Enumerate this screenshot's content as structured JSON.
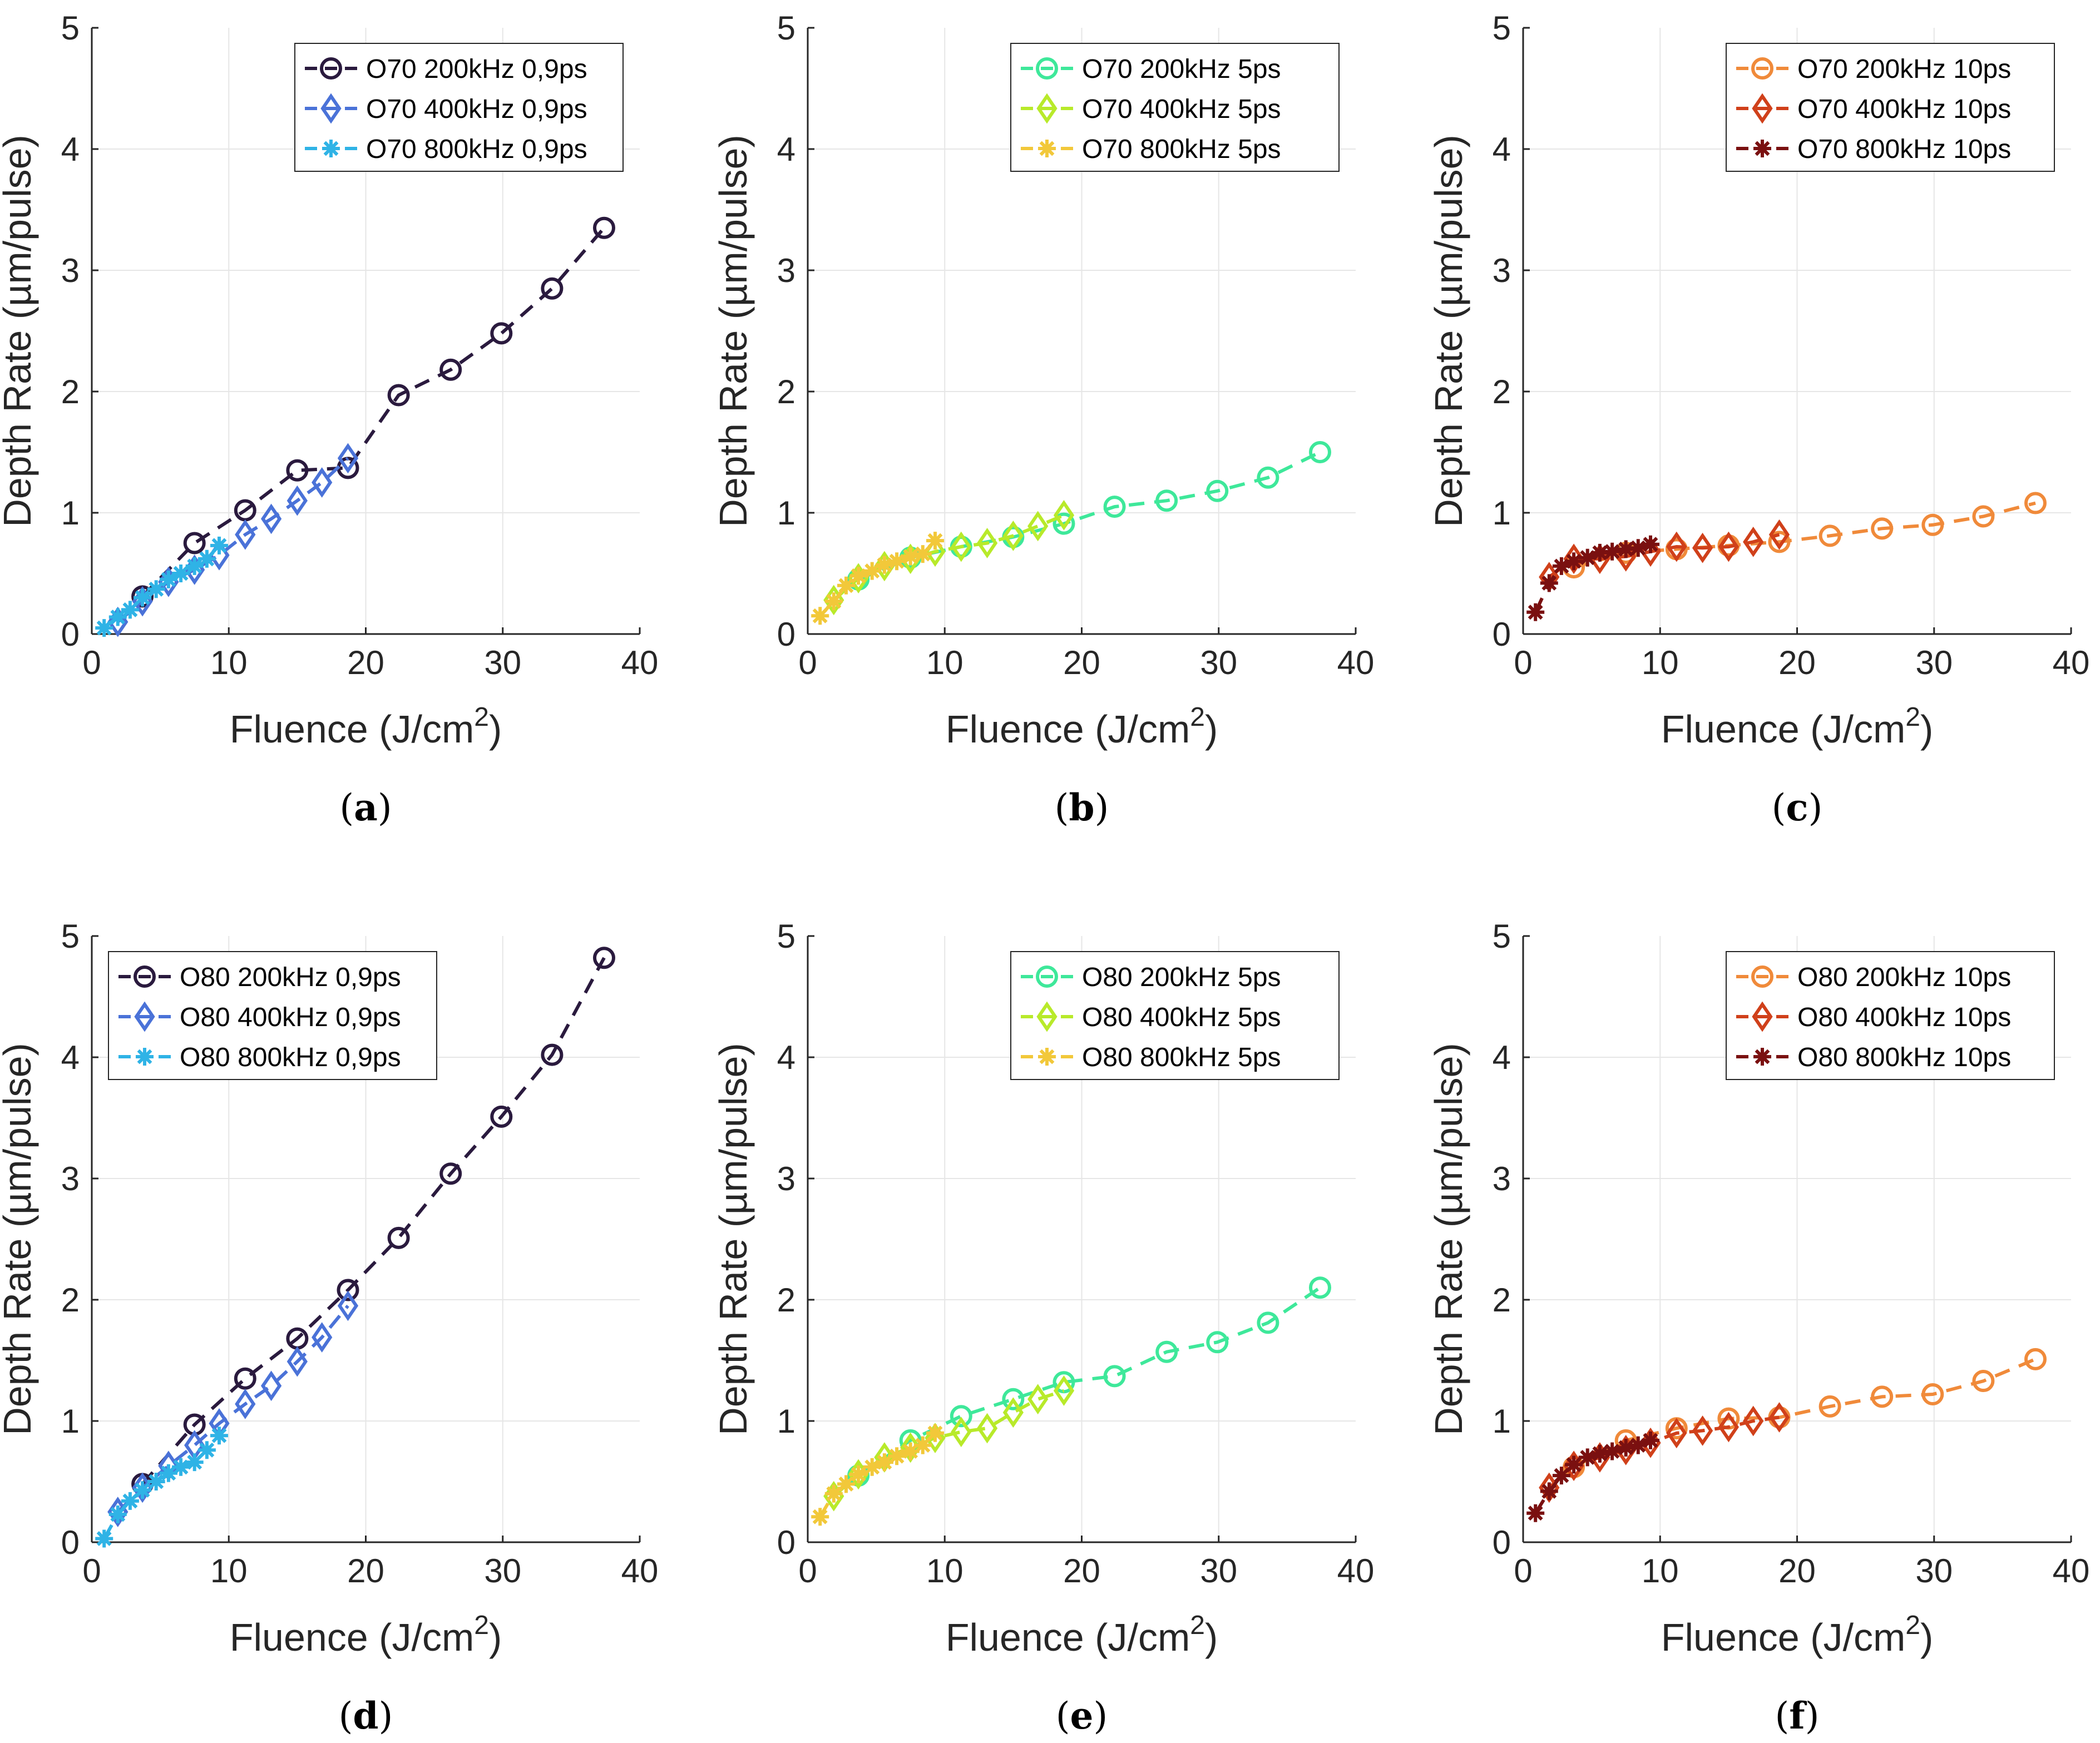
{
  "figure": {
    "panels": [
      {
        "id": "a",
        "caption": "(a)",
        "caption_letter": "a",
        "xlabel": "Fluence (J/cm",
        "xlabel_sup": "2",
        "xlabel_close": ")",
        "ylabel": "Depth Rate (µm/pulse)",
        "chart_data": {
          "type": "line",
          "xlim": [
            0,
            40
          ],
          "ylim": [
            0,
            5
          ],
          "xticks": [
            0,
            10,
            20,
            30,
            40
          ],
          "yticks": [
            0,
            1,
            2,
            3,
            4,
            5
          ],
          "grid": true,
          "legend": "top-right",
          "series": [
            {
              "name": "O70 200kHz 0,9ps",
              "color": "#2a1a3e",
              "marker": "circle",
              "x": [
                3.7,
                7.5,
                11.2,
                15.0,
                18.7,
                22.4,
                26.2,
                29.9,
                33.6,
                37.4
              ],
              "y": [
                0.31,
                0.75,
                1.02,
                1.35,
                1.37,
                1.97,
                2.18,
                2.48,
                2.85,
                3.35
              ]
            },
            {
              "name": "O70 400kHz 0,9ps",
              "color": "#4a72d8",
              "marker": "diamond",
              "x": [
                1.9,
                3.7,
                5.6,
                7.5,
                9.3,
                11.2,
                13.1,
                15.0,
                16.8,
                18.7
              ],
              "y": [
                0.1,
                0.27,
                0.43,
                0.53,
                0.65,
                0.82,
                0.95,
                1.1,
                1.25,
                1.45
              ]
            },
            {
              "name": "O70 800kHz 0,9ps",
              "color": "#2fb3e6",
              "marker": "star",
              "x": [
                0.9,
                1.9,
                2.8,
                3.7,
                4.7,
                5.6,
                6.5,
                7.5,
                8.4,
                9.3
              ],
              "y": [
                0.05,
                0.14,
                0.2,
                0.3,
                0.37,
                0.45,
                0.5,
                0.56,
                0.62,
                0.73
              ]
            }
          ]
        }
      },
      {
        "id": "b",
        "caption": "(b)",
        "caption_letter": "b",
        "xlabel": "Fluence (J/cm",
        "xlabel_sup": "2",
        "xlabel_close": ")",
        "ylabel": "Depth Rate (µm/pulse)",
        "chart_data": {
          "type": "line",
          "xlim": [
            0,
            40
          ],
          "ylim": [
            0,
            5
          ],
          "xticks": [
            0,
            10,
            20,
            30,
            40
          ],
          "yticks": [
            0,
            1,
            2,
            3,
            4,
            5
          ],
          "grid": true,
          "legend": "top-right",
          "series": [
            {
              "name": "O70 200kHz 5ps",
              "color": "#3ee89a",
              "marker": "circle",
              "x": [
                3.7,
                7.5,
                11.2,
                15.0,
                18.7,
                22.4,
                26.2,
                29.9,
                33.6,
                37.4
              ],
              "y": [
                0.45,
                0.63,
                0.72,
                0.8,
                0.91,
                1.05,
                1.1,
                1.18,
                1.29,
                1.5
              ]
            },
            {
              "name": "O70 400kHz 5ps",
              "color": "#b8ea2a",
              "marker": "diamond",
              "x": [
                1.9,
                3.7,
                5.6,
                7.5,
                9.3,
                11.2,
                13.1,
                15.0,
                16.8,
                18.7
              ],
              "y": [
                0.28,
                0.46,
                0.56,
                0.62,
                0.68,
                0.72,
                0.75,
                0.81,
                0.89,
                0.98
              ]
            },
            {
              "name": "O70 800kHz 5ps",
              "color": "#f2c83a",
              "marker": "star",
              "x": [
                0.9,
                1.9,
                2.8,
                3.7,
                4.7,
                5.6,
                6.5,
                7.5,
                8.4,
                9.3
              ],
              "y": [
                0.15,
                0.27,
                0.4,
                0.48,
                0.52,
                0.57,
                0.6,
                0.64,
                0.66,
                0.77
              ]
            }
          ]
        }
      },
      {
        "id": "c",
        "caption": "(c)",
        "caption_letter": "c",
        "xlabel": "Fluence (J/cm",
        "xlabel_sup": "2",
        "xlabel_close": ")",
        "ylabel": "Depth Rate (µm/pulse)",
        "chart_data": {
          "type": "line",
          "xlim": [
            0,
            40
          ],
          "ylim": [
            0,
            5
          ],
          "xticks": [
            0,
            10,
            20,
            30,
            40
          ],
          "yticks": [
            0,
            1,
            2,
            3,
            4,
            5
          ],
          "grid": true,
          "legend": "top-right",
          "series": [
            {
              "name": "O70 200kHz 10ps",
              "color": "#f08a3a",
              "marker": "circle",
              "x": [
                3.7,
                7.5,
                11.2,
                15.0,
                18.7,
                22.4,
                26.2,
                29.9,
                33.6,
                37.4
              ],
              "y": [
                0.55,
                0.67,
                0.7,
                0.73,
                0.76,
                0.81,
                0.87,
                0.9,
                0.97,
                1.08
              ]
            },
            {
              "name": "O70 400kHz 10ps",
              "color": "#d0401a",
              "marker": "diamond",
              "x": [
                1.9,
                3.7,
                5.6,
                7.5,
                9.3,
                11.2,
                13.1,
                15.0,
                16.8,
                18.7
              ],
              "y": [
                0.47,
                0.62,
                0.62,
                0.64,
                0.68,
                0.72,
                0.71,
                0.72,
                0.76,
                0.82
              ]
            },
            {
              "name": "O70 800kHz 10ps",
              "color": "#7a1010",
              "marker": "star",
              "x": [
                0.9,
                1.9,
                2.8,
                3.7,
                4.7,
                5.6,
                6.5,
                7.5,
                8.4,
                9.3
              ],
              "y": [
                0.18,
                0.42,
                0.56,
                0.6,
                0.63,
                0.67,
                0.68,
                0.7,
                0.71,
                0.74
              ]
            }
          ]
        }
      },
      {
        "id": "d",
        "caption": "(d)",
        "caption_letter": "d",
        "xlabel": "Fluence (J/cm",
        "xlabel_sup": "2",
        "xlabel_close": ")",
        "ylabel": "Depth Rate (µm/pulse)",
        "chart_data": {
          "type": "line",
          "xlim": [
            0,
            40
          ],
          "ylim": [
            0,
            5
          ],
          "xticks": [
            0,
            10,
            20,
            30,
            40
          ],
          "yticks": [
            0,
            1,
            2,
            3,
            4,
            5
          ],
          "grid": true,
          "legend": "top-left",
          "series": [
            {
              "name": "O80 200kHz 0,9ps",
              "color": "#2a1a3e",
              "marker": "circle",
              "x": [
                3.7,
                7.5,
                11.2,
                15.0,
                18.7,
                22.4,
                26.2,
                29.9,
                33.6,
                37.4
              ],
              "y": [
                0.48,
                0.97,
                1.35,
                1.68,
                2.08,
                2.51,
                3.04,
                3.51,
                4.02,
                4.82
              ]
            },
            {
              "name": "O80 400kHz 0,9ps",
              "color": "#4a72d8",
              "marker": "diamond",
              "x": [
                1.9,
                3.7,
                5.6,
                7.5,
                9.3,
                11.2,
                13.1,
                15.0,
                16.8,
                18.7
              ],
              "y": [
                0.25,
                0.45,
                0.63,
                0.8,
                0.98,
                1.14,
                1.29,
                1.49,
                1.69,
                1.95
              ]
            },
            {
              "name": "O80 800kHz 0,9ps",
              "color": "#2fb3e6",
              "marker": "star",
              "x": [
                0.9,
                1.9,
                2.8,
                3.7,
                4.7,
                5.6,
                6.5,
                7.5,
                8.4,
                9.3
              ],
              "y": [
                0.03,
                0.23,
                0.34,
                0.43,
                0.5,
                0.57,
                0.62,
                0.66,
                0.76,
                0.88
              ]
            }
          ]
        }
      },
      {
        "id": "e",
        "caption": "(e)",
        "caption_letter": "e",
        "xlabel": "Fluence (J/cm",
        "xlabel_sup": "2",
        "xlabel_close": ")",
        "ylabel": "Depth Rate (µm/pulse)",
        "chart_data": {
          "type": "line",
          "xlim": [
            0,
            40
          ],
          "ylim": [
            0,
            5
          ],
          "xticks": [
            0,
            10,
            20,
            30,
            40
          ],
          "yticks": [
            0,
            1,
            2,
            3,
            4,
            5
          ],
          "grid": true,
          "legend": "top-right",
          "series": [
            {
              "name": "O80 200kHz 5ps",
              "color": "#3ee89a",
              "marker": "circle",
              "x": [
                3.7,
                7.5,
                11.2,
                15.0,
                18.7,
                22.4,
                26.2,
                29.9,
                33.6,
                37.4
              ],
              "y": [
                0.55,
                0.84,
                1.04,
                1.18,
                1.32,
                1.37,
                1.57,
                1.65,
                1.81,
                2.1
              ]
            },
            {
              "name": "O80 400kHz 5ps",
              "color": "#b8ea2a",
              "marker": "diamond",
              "x": [
                1.9,
                3.7,
                5.6,
                7.5,
                9.3,
                11.2,
                13.1,
                15.0,
                16.8,
                18.7
              ],
              "y": [
                0.38,
                0.56,
                0.7,
                0.78,
                0.86,
                0.91,
                0.94,
                1.07,
                1.18,
                1.25
              ]
            },
            {
              "name": "O80 800kHz 5ps",
              "color": "#f2c83a",
              "marker": "star",
              "x": [
                0.9,
                1.9,
                2.8,
                3.7,
                4.7,
                5.6,
                6.5,
                7.5,
                8.4,
                9.3
              ],
              "y": [
                0.21,
                0.4,
                0.48,
                0.56,
                0.62,
                0.66,
                0.71,
                0.75,
                0.8,
                0.9
              ]
            }
          ]
        }
      },
      {
        "id": "f",
        "caption": "(f)",
        "caption_letter": "f",
        "xlabel": "Fluence (J/cm",
        "xlabel_sup": "2",
        "xlabel_close": ")",
        "ylabel": "Depth Rate (µm/pulse)",
        "chart_data": {
          "type": "line",
          "xlim": [
            0,
            40
          ],
          "ylim": [
            0,
            5
          ],
          "xticks": [
            0,
            10,
            20,
            30,
            40
          ],
          "yticks": [
            0,
            1,
            2,
            3,
            4,
            5
          ],
          "grid": true,
          "legend": "top-right",
          "series": [
            {
              "name": "O80 200kHz 10ps",
              "color": "#f08a3a",
              "marker": "circle",
              "x": [
                3.7,
                7.5,
                11.2,
                15.0,
                18.7,
                22.4,
                26.2,
                29.9,
                33.6,
                37.4
              ],
              "y": [
                0.62,
                0.84,
                0.94,
                1.02,
                1.03,
                1.12,
                1.2,
                1.22,
                1.33,
                1.51
              ]
            },
            {
              "name": "O80 400kHz 10ps",
              "color": "#d0401a",
              "marker": "diamond",
              "x": [
                1.9,
                3.7,
                5.6,
                7.5,
                9.3,
                11.2,
                13.1,
                15.0,
                16.8,
                18.7
              ],
              "y": [
                0.45,
                0.63,
                0.7,
                0.76,
                0.82,
                0.9,
                0.92,
                0.95,
                1.0,
                1.03
              ]
            },
            {
              "name": "O80 800kHz 10ps",
              "color": "#7a1010",
              "marker": "star",
              "x": [
                0.9,
                1.9,
                2.8,
                3.7,
                4.7,
                5.6,
                6.5,
                7.5,
                8.4,
                9.3
              ],
              "y": [
                0.24,
                0.42,
                0.55,
                0.64,
                0.7,
                0.73,
                0.75,
                0.78,
                0.8,
                0.84
              ]
            }
          ]
        }
      }
    ]
  }
}
